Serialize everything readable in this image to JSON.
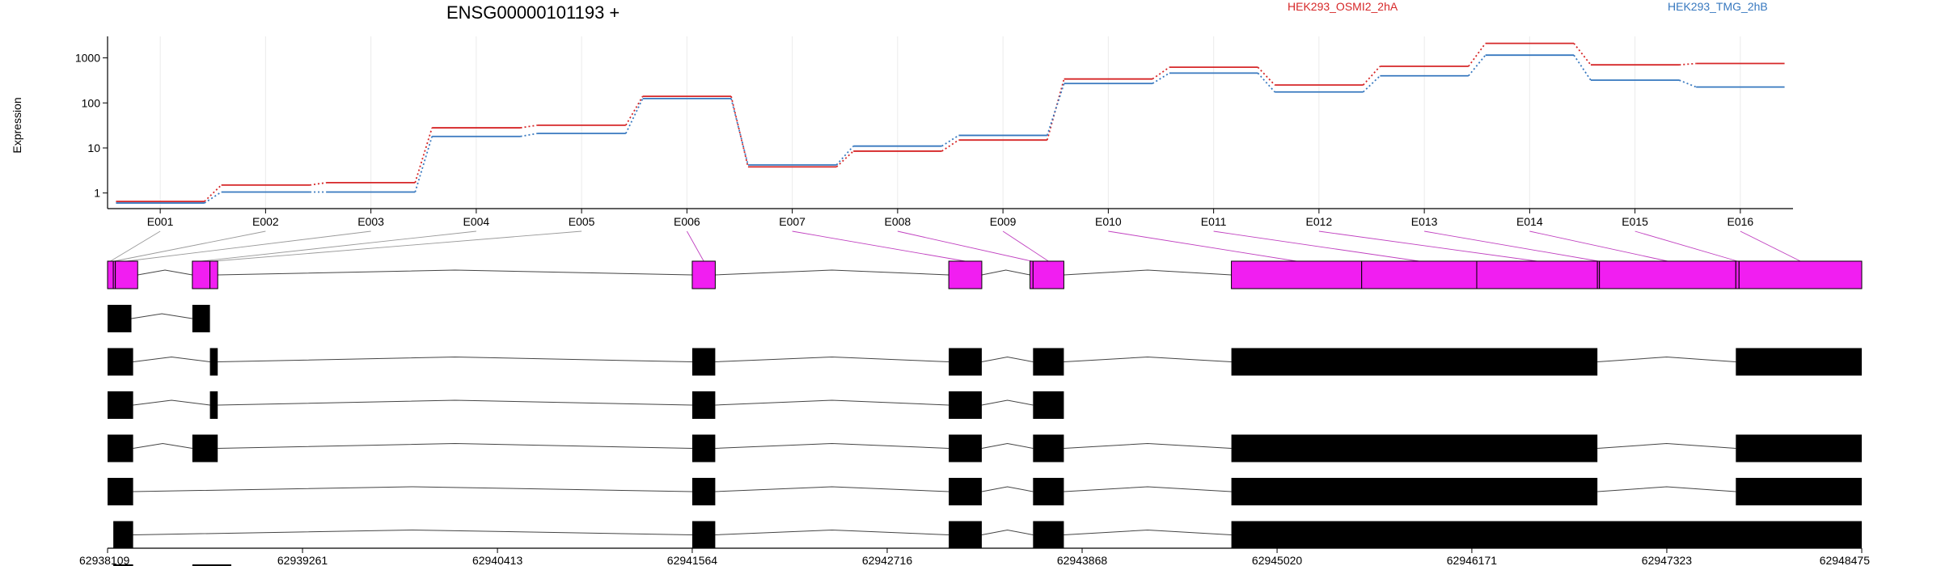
{
  "chart_data": {
    "type": "line",
    "title": "ENSG00000101193 +",
    "xlabel": "",
    "ylabel": "Expression",
    "y_scale": "log",
    "y_ticks": [
      "1",
      "10",
      "100",
      "1000"
    ],
    "y_tick_values": [
      1,
      10,
      100,
      1000
    ],
    "ylim": [
      0.45,
      3000
    ],
    "grid": "vertical",
    "legend_position": "top-right",
    "colors": {
      "highlight": "#f11ef1",
      "exon_fill": "#000000",
      "grid": "#ebebeb"
    },
    "categories": [
      "E001",
      "E002",
      "E003",
      "E004",
      "E005",
      "E006",
      "E007",
      "E008",
      "E009",
      "E010",
      "E011",
      "E012",
      "E013",
      "E014",
      "E015",
      "E016"
    ],
    "series": [
      {
        "name": "HEK293_OSMI2_2hA",
        "color": "#d62728",
        "values": [
          0.65,
          1.5,
          1.7,
          28,
          32,
          140,
          3.8,
          8.5,
          15,
          340,
          620,
          250,
          650,
          2100,
          700,
          750
        ]
      },
      {
        "name": "HEK293_TMG_2hB",
        "color": "#3778bf",
        "values": [
          0.6,
          1.05,
          1.05,
          18,
          21,
          125,
          4.2,
          11,
          19,
          270,
          460,
          175,
          400,
          1150,
          320,
          225
        ]
      }
    ],
    "exons": [
      {
        "id": "E001",
        "start": 62938109,
        "end": 62938143
      },
      {
        "id": "E002",
        "start": 62938143,
        "end": 62938155
      },
      {
        "id": "E003",
        "start": 62938155,
        "end": 62938287
      },
      {
        "id": "E004",
        "start": 62938610,
        "end": 62938714
      },
      {
        "id": "E005",
        "start": 62938714,
        "end": 62938760
      },
      {
        "id": "E006",
        "start": 62941564,
        "end": 62941700
      },
      {
        "id": "E007",
        "start": 62943080,
        "end": 62943275
      },
      {
        "id": "E008",
        "start": 62943560,
        "end": 62943578
      },
      {
        "id": "E009",
        "start": 62943578,
        "end": 62943760
      },
      {
        "id": "E010",
        "start": 62944750,
        "end": 62945520
      },
      {
        "id": "E011",
        "start": 62945520,
        "end": 62946200
      },
      {
        "id": "E012",
        "start": 62946200,
        "end": 62946913
      },
      {
        "id": "E013",
        "start": 62946913,
        "end": 62946925
      },
      {
        "id": "E014",
        "start": 62946925,
        "end": 62947731
      },
      {
        "id": "E015",
        "start": 62947731,
        "end": 62947750
      },
      {
        "id": "E016",
        "start": 62947750,
        "end": 62948475
      }
    ],
    "genomic_ticks": [
      "62938109",
      "62939261",
      "62940413",
      "62941564",
      "62942716",
      "62943868",
      "62945020",
      "62946171",
      "62947323",
      "62948475"
    ],
    "genomic_tick_values": [
      62938109,
      62939261,
      62940413,
      62941564,
      62942716,
      62943868,
      62945020,
      62946171,
      62947323,
      62948475
    ],
    "genomic_range": [
      62938109,
      62948475
    ],
    "transcripts": [
      [
        [
          62938109,
          62938250
        ],
        [
          62938610,
          62938714
        ]
      ],
      [
        [
          62938109,
          62938260
        ],
        [
          62938714,
          62938760
        ],
        [
          62941564,
          62941700
        ],
        [
          62943080,
          62943275
        ],
        [
          62943578,
          62943760
        ],
        [
          62944750,
          62946913
        ],
        [
          62947731,
          62948475
        ]
      ],
      [
        [
          62938109,
          62938260
        ],
        [
          62938714,
          62938760
        ],
        [
          62941564,
          62941700
        ],
        [
          62943080,
          62943275
        ],
        [
          62943578,
          62943760
        ]
      ],
      [
        [
          62938109,
          62938260
        ],
        [
          62938610,
          62938760
        ],
        [
          62941564,
          62941700
        ],
        [
          62943080,
          62943275
        ],
        [
          62943578,
          62943760
        ],
        [
          62944750,
          62946913
        ],
        [
          62947731,
          62948475
        ]
      ],
      [
        [
          62938109,
          62938260
        ],
        [
          62941564,
          62941700
        ],
        [
          62943080,
          62943275
        ],
        [
          62943578,
          62943760
        ],
        [
          62944750,
          62946913
        ],
        [
          62947731,
          62948475
        ]
      ],
      [
        [
          62938143,
          62938260
        ],
        [
          62941564,
          62941700
        ],
        [
          62943080,
          62943275
        ],
        [
          62943578,
          62943760
        ],
        [
          62944750,
          62948475
        ]
      ],
      [
        [
          62938143,
          62938260
        ],
        [
          62938610,
          62938840
        ]
      ]
    ]
  }
}
